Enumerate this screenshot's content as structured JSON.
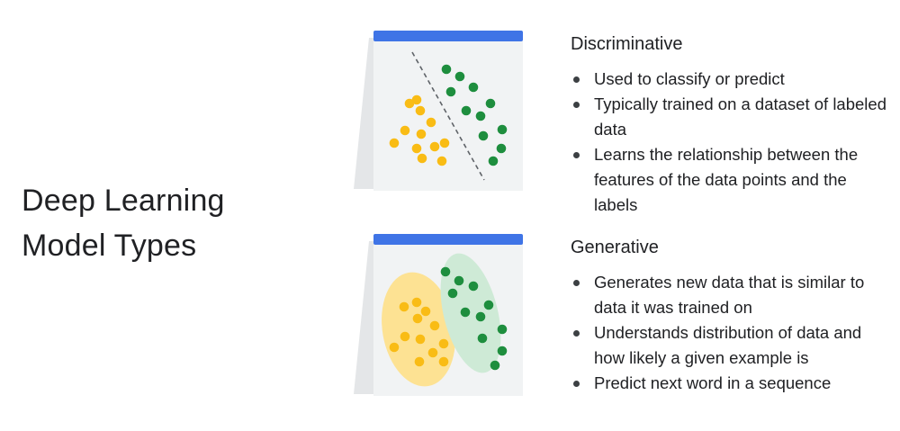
{
  "slide": {
    "title_lines": [
      "Deep Learning",
      "Model Types"
    ]
  },
  "colors": {
    "panel_bar": "#3f74e6",
    "panel_face": "#f1f3f4",
    "panel_side": "#e4e6e8",
    "yellow_point": "#f9bc15",
    "green_point": "#1e8e3e",
    "yellow_cluster": "#fde293",
    "green_cluster": "#ceead6",
    "divider": "#5f6368"
  },
  "discriminative": {
    "heading": "Discriminative",
    "bullets": [
      "Used to classify or predict",
      "Typically trained on a dataset of labeled data",
      "Learns the relationship between the features of the data points and the labels"
    ]
  },
  "generative": {
    "heading": "Generative",
    "bullets": [
      "Generates new data that is similar to data it was trained on",
      "Understands distribution of data and how likely a given example is",
      "Predict next word in a sequence"
    ]
  }
}
